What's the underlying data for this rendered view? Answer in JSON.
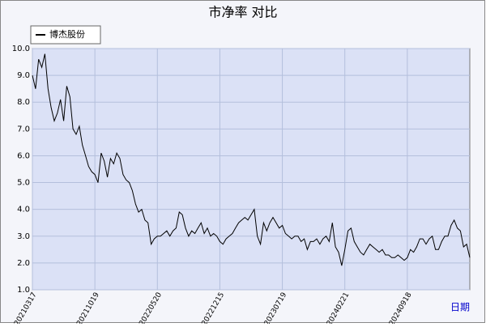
{
  "chart_data": {
    "type": "line",
    "title": "市净率 对比",
    "xlabel": "日期",
    "categories": [
      "20210317",
      null,
      null,
      null,
      null,
      null,
      null,
      null,
      null,
      null,
      null,
      null,
      null,
      null,
      null,
      null,
      null,
      null,
      null,
      null,
      "20211019",
      null,
      null,
      null,
      null,
      null,
      null,
      null,
      null,
      null,
      null,
      null,
      null,
      null,
      null,
      null,
      null,
      null,
      null,
      null,
      "20220520",
      null,
      null,
      null,
      null,
      null,
      null,
      null,
      null,
      null,
      null,
      null,
      null,
      null,
      null,
      null,
      null,
      null,
      null,
      null,
      "20221215",
      null,
      null,
      null,
      null,
      null,
      null,
      null,
      null,
      null,
      null,
      null,
      null,
      null,
      null,
      null,
      null,
      null,
      null,
      null,
      "20230719",
      null,
      null,
      null,
      null,
      null,
      null,
      null,
      null,
      null,
      null,
      null,
      null,
      null,
      null,
      null,
      null,
      null,
      null,
      null,
      "20240221",
      null,
      null,
      null,
      null,
      null,
      null,
      null,
      null,
      null,
      null,
      null,
      null,
      null,
      null,
      null,
      null,
      null,
      null,
      null,
      "20240918",
      null,
      null,
      null,
      null,
      null,
      null,
      null,
      null,
      null,
      null,
      null,
      null,
      null,
      null,
      null,
      null,
      null,
      null,
      null,
      null
    ],
    "series": [
      {
        "name": "博杰股份",
        "color": "#000000",
        "values": [
          9.0,
          8.5,
          9.6,
          9.3,
          9.8,
          8.5,
          7.8,
          7.3,
          7.6,
          8.1,
          7.3,
          8.6,
          8.2,
          7.0,
          6.8,
          7.1,
          6.4,
          6.0,
          5.6,
          5.4,
          5.3,
          5.0,
          6.1,
          5.8,
          5.2,
          5.9,
          5.7,
          6.1,
          5.9,
          5.3,
          5.1,
          5.0,
          4.7,
          4.2,
          3.9,
          4.0,
          3.6,
          3.5,
          2.7,
          2.9,
          3.0,
          3.0,
          3.1,
          3.2,
          3.0,
          3.2,
          3.3,
          3.9,
          3.8,
          3.3,
          3.0,
          3.2,
          3.1,
          3.3,
          3.5,
          3.1,
          3.3,
          3.0,
          3.1,
          3.0,
          2.8,
          2.7,
          2.9,
          3.0,
          3.1,
          3.3,
          3.5,
          3.6,
          3.7,
          3.6,
          3.8,
          4.0,
          3.0,
          2.7,
          3.5,
          3.2,
          3.5,
          3.7,
          3.5,
          3.3,
          3.4,
          3.1,
          3.0,
          2.9,
          3.0,
          3.0,
          2.8,
          2.9,
          2.5,
          2.8,
          2.8,
          2.9,
          2.7,
          2.9,
          3.0,
          2.8,
          3.5,
          2.6,
          2.4,
          1.9,
          2.5,
          3.2,
          3.3,
          2.8,
          2.6,
          2.4,
          2.3,
          2.5,
          2.7,
          2.6,
          2.5,
          2.4,
          2.5,
          2.3,
          2.3,
          2.2,
          2.2,
          2.3,
          2.2,
          2.1,
          2.2,
          2.5,
          2.4,
          2.6,
          2.9,
          2.9,
          2.7,
          2.9,
          3.0,
          2.5,
          2.5,
          2.8,
          3.0,
          3.0,
          3.4,
          3.6,
          3.3,
          3.2,
          2.6,
          2.7,
          2.2
        ]
      }
    ],
    "ylim": [
      1,
      10
    ],
    "yticks": [
      {
        "value": 1,
        "label": "1.0"
      },
      {
        "value": 2,
        "label": "2.0"
      },
      {
        "value": 3,
        "label": "3.0"
      },
      {
        "value": 4,
        "label": "4.0"
      },
      {
        "value": 5,
        "label": "5.0"
      },
      {
        "value": 6,
        "label": "6.0"
      },
      {
        "value": 7,
        "label": "7.0"
      },
      {
        "value": 8,
        "label": "8.0"
      },
      {
        "value": 9,
        "label": "9.0"
      },
      {
        "value": 10,
        "label": "10.0"
      }
    ],
    "grid": true
  }
}
